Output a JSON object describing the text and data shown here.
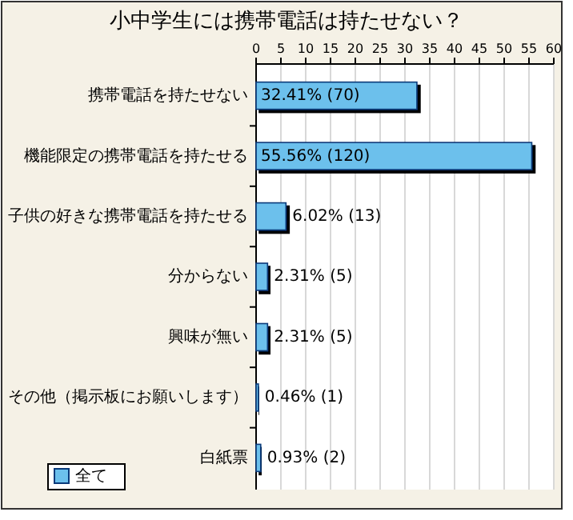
{
  "chart_data": {
    "type": "bar",
    "orientation": "horizontal",
    "title": "小中学生には携帯電話は持たせない？",
    "categories": [
      "携帯電話を持たせない",
      "機能限定の携帯電話を持たせる",
      "子供の好きな携帯電話を持たせる",
      "分からない",
      "興味が無い",
      "その他（掲示板にお願いします）",
      "白紙票"
    ],
    "series": [
      {
        "name": "全て",
        "color": "#6cc0ec",
        "values": [
          32.41,
          55.56,
          6.02,
          2.31,
          2.31,
          0.46,
          0.93
        ],
        "value_labels": [
          "32.41% (70)",
          "55.56% (120)",
          "6.02% (13)",
          "2.31% (5)",
          "2.31% (5)",
          "0.46% (1)",
          "0.93% (2)"
        ]
      }
    ],
    "xlim": [
      0,
      60
    ],
    "xticks": [
      0,
      5,
      10,
      15,
      20,
      25,
      30,
      35,
      40,
      45,
      50,
      55,
      60
    ],
    "grid": "x",
    "legend": "bottom left"
  }
}
